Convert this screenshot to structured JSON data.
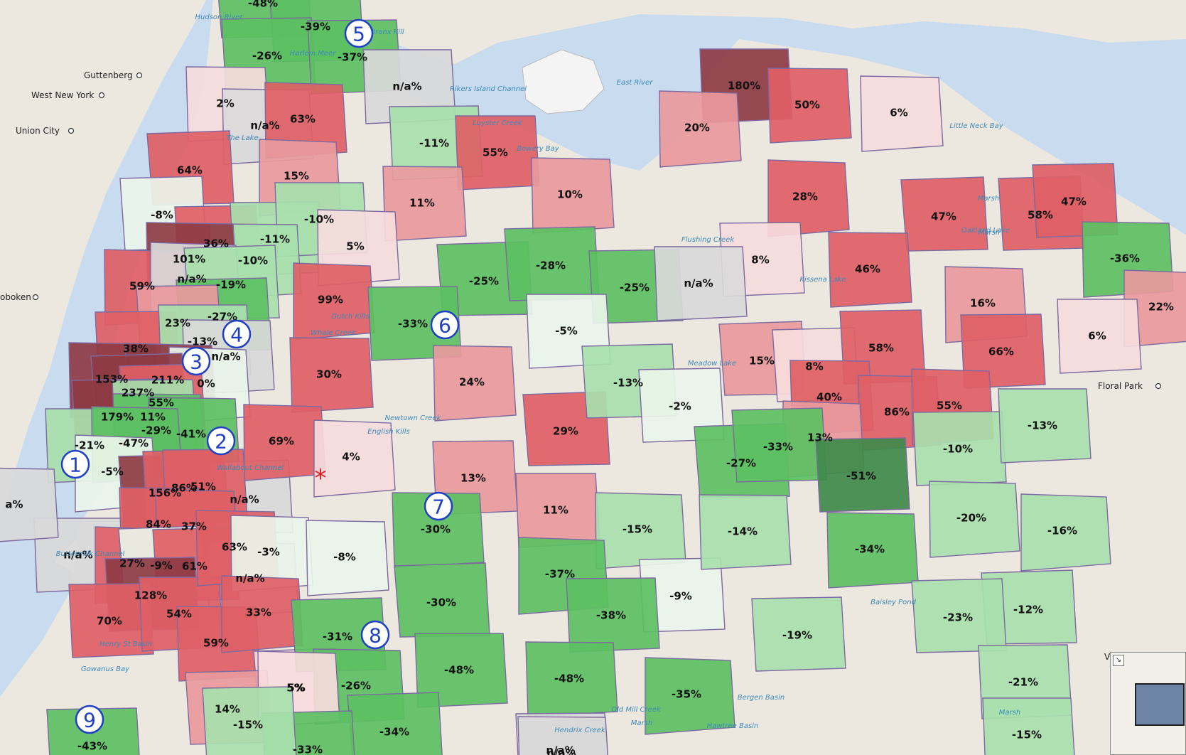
{
  "colors": {
    "water": "#c9dbef",
    "land": "#ece7df",
    "neutral": "#d9d9d9",
    "boundary": "#7d6aa0",
    "dark_red": "#8e3b44",
    "red": "#de6065",
    "mid_red": "#e99a9d",
    "light_red": "#f6dcdc",
    "very_light_green": "#eaf5ea",
    "light_green": "#a8dfac",
    "green": "#5cc062",
    "dark_green": "#3f8a4a"
  },
  "regions": [
    {
      "label": "-48%",
      "tone": "green"
    },
    {
      "label": "-39%",
      "tone": "green"
    },
    {
      "label": "-26%",
      "tone": "green"
    },
    {
      "label": "-37%",
      "tone": "green"
    },
    {
      "label": "n/a%",
      "tone": "neutral"
    },
    {
      "label": "2%",
      "tone": "light_red"
    },
    {
      "label": "n/a%",
      "tone": "neutral"
    },
    {
      "label": "63%",
      "tone": "red"
    },
    {
      "label": "15%",
      "tone": "mid_red"
    },
    {
      "label": "64%",
      "tone": "red"
    },
    {
      "label": "-8%",
      "tone": "very_light_green"
    },
    {
      "label": "36%",
      "tone": "red"
    },
    {
      "label": "-11%",
      "tone": "light_green"
    },
    {
      "label": "-10%",
      "tone": "light_green"
    },
    {
      "label": "-10%",
      "tone": "light_green"
    },
    {
      "label": "101%",
      "tone": "dark_red"
    },
    {
      "label": "59%",
      "tone": "red"
    },
    {
      "label": "n/a%",
      "tone": "neutral"
    },
    {
      "label": "-19%",
      "tone": "light_green"
    },
    {
      "label": "-27%",
      "tone": "green"
    },
    {
      "label": "23%",
      "tone": "mid_red"
    },
    {
      "label": "38%",
      "tone": "red"
    },
    {
      "label": "-13%",
      "tone": "light_green"
    },
    {
      "label": "n/a%",
      "tone": "neutral"
    },
    {
      "label": "153%",
      "tone": "dark_red"
    },
    {
      "label": "211%",
      "tone": "dark_red"
    },
    {
      "label": "0%",
      "tone": "very_light_green"
    },
    {
      "label": "237%",
      "tone": "dark_red"
    },
    {
      "label": "55%",
      "tone": "red"
    },
    {
      "label": "179%",
      "tone": "dark_red"
    },
    {
      "label": "11%",
      "tone": "light_green"
    },
    {
      "label": "-21%",
      "tone": "light_green"
    },
    {
      "label": "-29%",
      "tone": "green"
    },
    {
      "label": "-41%",
      "tone": "green"
    },
    {
      "label": "-47%",
      "tone": "green"
    },
    {
      "label": "-5%",
      "tone": "very_light_green"
    },
    {
      "label": "n/a%",
      "tone": "neutral"
    },
    {
      "label": "156%",
      "tone": "dark_red"
    },
    {
      "label": "86%",
      "tone": "red"
    },
    {
      "label": "51%",
      "tone": "red"
    },
    {
      "label": "n/a%",
      "tone": "neutral"
    },
    {
      "label": "84%",
      "tone": "red"
    },
    {
      "label": "37%",
      "tone": "red"
    },
    {
      "label": "n/a%",
      "tone": "neutral"
    },
    {
      "label": "27%",
      "tone": "red"
    },
    {
      "label": "-9%",
      "tone": "very_light_green"
    },
    {
      "label": "61%",
      "tone": "red"
    },
    {
      "label": "128%",
      "tone": "dark_red"
    },
    {
      "label": "70%",
      "tone": "red"
    },
    {
      "label": "54%",
      "tone": "red"
    },
    {
      "label": "59%",
      "tone": "red"
    },
    {
      "label": "63%",
      "tone": "red"
    },
    {
      "label": "-3%",
      "tone": "very_light_green"
    },
    {
      "label": "33%",
      "tone": "red"
    },
    {
      "label": "5%",
      "tone": "light_red"
    },
    {
      "label": "14%",
      "tone": "mid_red"
    },
    {
      "label": "-43%",
      "tone": "green"
    },
    {
      "label": "-11%",
      "tone": "light_green"
    },
    {
      "label": "55%",
      "tone": "red"
    },
    {
      "label": "11%",
      "tone": "mid_red"
    },
    {
      "label": "10%",
      "tone": "mid_red"
    },
    {
      "label": "5%",
      "tone": "light_red"
    },
    {
      "label": "99%",
      "tone": "red"
    },
    {
      "label": "-25%",
      "tone": "green"
    },
    {
      "label": "-28%",
      "tone": "green"
    },
    {
      "label": "-25%",
      "tone": "green"
    },
    {
      "label": "-33%",
      "tone": "green"
    },
    {
      "label": "-5%",
      "tone": "very_light_green"
    },
    {
      "label": "30%",
      "tone": "red"
    },
    {
      "label": "24%",
      "tone": "mid_red"
    },
    {
      "label": "69%",
      "tone": "red"
    },
    {
      "label": "4%",
      "tone": "light_red"
    },
    {
      "label": "29%",
      "tone": "red"
    },
    {
      "label": "-13%",
      "tone": "light_green"
    },
    {
      "label": "-2%",
      "tone": "very_light_green"
    },
    {
      "label": "13%",
      "tone": "mid_red"
    },
    {
      "label": "11%",
      "tone": "mid_red"
    },
    {
      "label": "-30%",
      "tone": "green"
    },
    {
      "label": "-8%",
      "tone": "very_light_green"
    },
    {
      "label": "-15%",
      "tone": "light_green"
    },
    {
      "label": "-37%",
      "tone": "green"
    },
    {
      "label": "-30%",
      "tone": "green"
    },
    {
      "label": "-31%",
      "tone": "green"
    },
    {
      "label": "-9%",
      "tone": "very_light_green"
    },
    {
      "label": "-38%",
      "tone": "green"
    },
    {
      "label": "-48%",
      "tone": "green"
    },
    {
      "label": "-48%",
      "tone": "green"
    },
    {
      "label": "-26%",
      "tone": "green"
    },
    {
      "label": "5%",
      "tone": "light_red"
    },
    {
      "label": "-35%",
      "tone": "green"
    },
    {
      "label": "-34%",
      "tone": "green"
    },
    {
      "label": "-33%",
      "tone": "green"
    },
    {
      "label": "-15%",
      "tone": "light_green"
    },
    {
      "label": "n/a%",
      "tone": "neutral"
    },
    {
      "label": "180%",
      "tone": "dark_red"
    },
    {
      "label": "50%",
      "tone": "red"
    },
    {
      "label": "6%",
      "tone": "light_red"
    },
    {
      "label": "20%",
      "tone": "mid_red"
    },
    {
      "label": "28%",
      "tone": "red"
    },
    {
      "label": "47%",
      "tone": "red"
    },
    {
      "label": "58%",
      "tone": "red"
    },
    {
      "label": "47%",
      "tone": "red"
    },
    {
      "label": "8%",
      "tone": "light_red"
    },
    {
      "label": "n/a%",
      "tone": "neutral"
    },
    {
      "label": "46%",
      "tone": "red"
    },
    {
      "label": "-36%",
      "tone": "green"
    },
    {
      "label": "16%",
      "tone": "mid_red"
    },
    {
      "label": "22%",
      "tone": "mid_red"
    },
    {
      "label": "15%",
      "tone": "mid_red"
    },
    {
      "label": "8%",
      "tone": "light_red"
    },
    {
      "label": "58%",
      "tone": "red"
    },
    {
      "label": "66%",
      "tone": "red"
    },
    {
      "label": "6%",
      "tone": "light_red"
    },
    {
      "label": "40%",
      "tone": "red"
    },
    {
      "label": "86%",
      "tone": "red"
    },
    {
      "label": "55%",
      "tone": "red"
    },
    {
      "label": "13%",
      "tone": "mid_red"
    },
    {
      "label": "-27%",
      "tone": "green"
    },
    {
      "label": "-33%",
      "tone": "green"
    },
    {
      "label": "-51%",
      "tone": "dark_green"
    },
    {
      "label": "-10%",
      "tone": "light_green"
    },
    {
      "label": "-13%",
      "tone": "light_green"
    },
    {
      "label": "-14%",
      "tone": "light_green"
    },
    {
      "label": "-34%",
      "tone": "green"
    },
    {
      "label": "-20%",
      "tone": "light_green"
    },
    {
      "label": "-16%",
      "tone": "light_green"
    },
    {
      "label": "-12%",
      "tone": "light_green"
    },
    {
      "label": "-23%",
      "tone": "light_green"
    },
    {
      "label": "-19%",
      "tone": "light_green"
    },
    {
      "label": "-21%",
      "tone": "light_green"
    },
    {
      "label": "-15%",
      "tone": "light_green"
    },
    {
      "label": "n/a%",
      "tone": "neutral"
    },
    {
      "label": "a%",
      "tone": "neutral"
    }
  ],
  "places": [
    "Guttenberg",
    "West New York",
    "Union City",
    "oboken",
    "Floral Park",
    "Va"
  ],
  "water_labels": [
    "Hudson River",
    "Bronx Kill",
    "Harlem Meer",
    "The Lake",
    "Rikers Island Channel",
    "Luyster Creek",
    "Bowery Bay",
    "East River",
    "Little Neck Bay",
    "Marsh",
    "Marsh",
    "Oakland Lake",
    "Flushing Creek",
    "Kissena Lake",
    "Dutch Kills",
    "Whale Creek",
    "Meadow Lake",
    "Newtown Creek",
    "English Kills",
    "Wallabout Channel",
    "Buttermilk Channel",
    "Henry St Basin",
    "Gowanus Bay",
    "Baisley Pond",
    "Bergen Basin",
    "Old Mill Creek",
    "Marsh",
    "Hawtree Basin",
    "Hendrix Creek",
    "Marsh"
  ],
  "markers": [
    "1",
    "2",
    "3",
    "4",
    "5",
    "6",
    "7",
    "8",
    "9"
  ],
  "highlight_marker": "*",
  "minimap_toggle_icon": "collapse-arrow-icon"
}
